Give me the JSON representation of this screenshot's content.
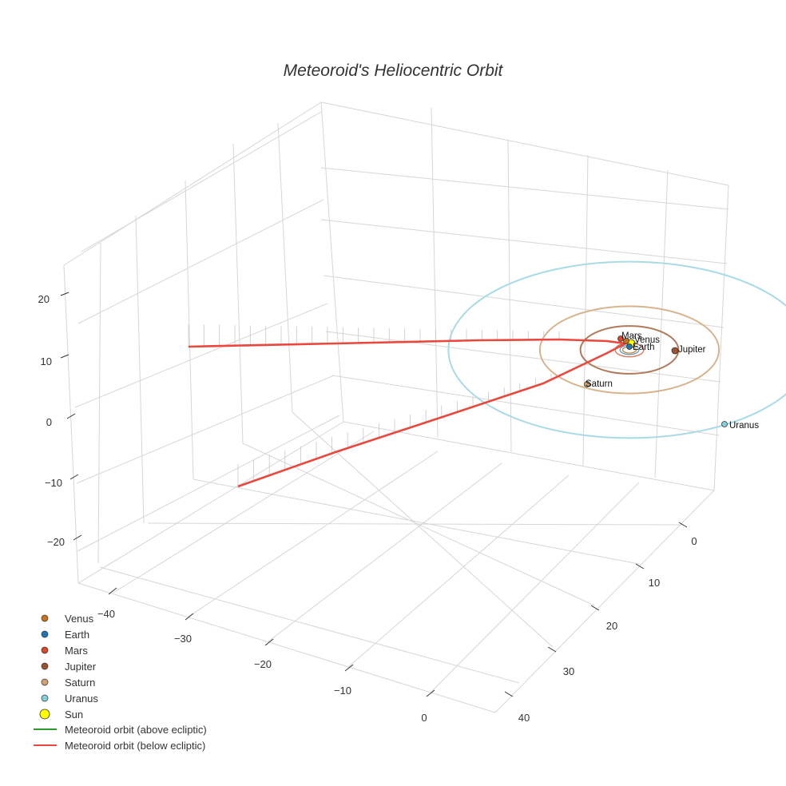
{
  "chart_data": {
    "type": "scatter3d",
    "title": "Meteoroid's Heliocentric Orbit",
    "axes": {
      "x": {
        "ticks": [
          -40,
          -30,
          -20,
          -10,
          0
        ],
        "tick_labels": [
          "−40",
          "−30",
          "−20",
          "−10",
          "0"
        ]
      },
      "y": {
        "ticks": [
          0,
          10,
          20,
          30,
          40
        ],
        "tick_labels": [
          "0",
          "10",
          "20",
          "30",
          "40"
        ]
      },
      "z": {
        "ticks": [
          20,
          10,
          0,
          -10,
          -20
        ],
        "tick_labels": [
          "20",
          "10",
          "0",
          "−10",
          "−20"
        ]
      }
    },
    "planets": [
      {
        "name": "Venus",
        "color": "#c8711b",
        "orbit_radius_au": 0.72,
        "orbit_color": "#c88a3a"
      },
      {
        "name": "Earth",
        "color": "#1f77b4",
        "orbit_radius_au": 1.0,
        "orbit_color": "#6a9fc9"
      },
      {
        "name": "Mars",
        "color": "#d9472b",
        "orbit_radius_au": 1.52,
        "orbit_color": "#d97a5a"
      },
      {
        "name": "Jupiter",
        "color": "#a0522d",
        "orbit_radius_au": 5.2,
        "orbit_color": "#b07a5a"
      },
      {
        "name": "Saturn",
        "color": "#d2a06e",
        "orbit_radius_au": 9.5,
        "orbit_color": "#d8b48c"
      },
      {
        "name": "Uranus",
        "color": "#87cedb",
        "orbit_radius_au": 19.2,
        "orbit_color": "#a9dbe6"
      }
    ],
    "sun": {
      "name": "Sun",
      "color": "#ffff00"
    },
    "meteoroid_orbit": {
      "above_ecliptic": {
        "name": "Meteoroid orbit (above ecliptic)",
        "color": "#2a9a2a"
      },
      "below_ecliptic": {
        "name": "Meteoroid orbit (below ecliptic)",
        "color": "#e8483e"
      }
    },
    "legend": {
      "position": "bottom-left",
      "entries": [
        {
          "label": "Venus",
          "symbol": "dot",
          "color": "#c8711b"
        },
        {
          "label": "Earth",
          "symbol": "dot",
          "color": "#1f77b4"
        },
        {
          "label": "Mars",
          "symbol": "dot",
          "color": "#d9472b"
        },
        {
          "label": "Jupiter",
          "symbol": "dot",
          "color": "#a0522d"
        },
        {
          "label": "Saturn",
          "symbol": "dot",
          "color": "#d2a06e"
        },
        {
          "label": "Uranus",
          "symbol": "dot",
          "color": "#87cedb"
        },
        {
          "label": "Sun",
          "symbol": "bigdot",
          "color": "#ffff00"
        },
        {
          "label": "Meteoroid orbit (above ecliptic)",
          "symbol": "line",
          "color": "#2a9a2a"
        },
        {
          "label": "Meteoroid orbit (below ecliptic)",
          "symbol": "line",
          "color": "#e8483e"
        }
      ]
    }
  }
}
